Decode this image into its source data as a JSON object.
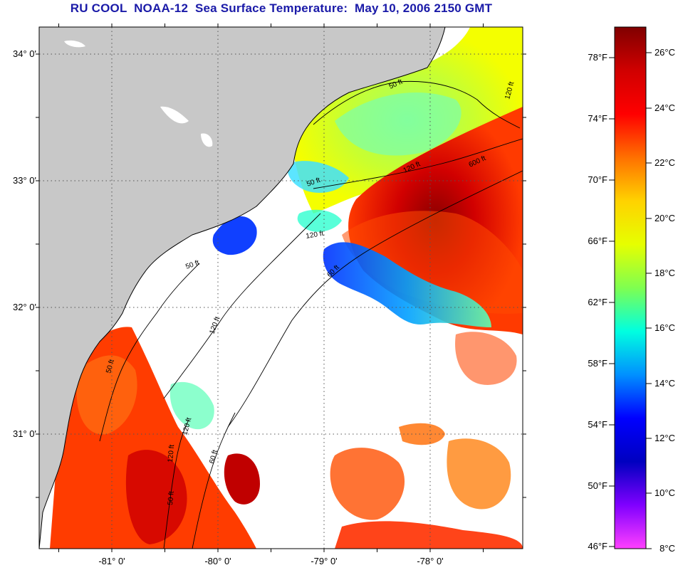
{
  "title": "RU COOL  NOAA-12  Sea Surface Temperature:  May 10, 2006 2150 GMT",
  "map": {
    "lat_labels": [
      {
        "text": "34° 0'",
        "lat": 34.0
      },
      {
        "text": "33° 0'",
        "lat": 33.0
      },
      {
        "text": "32° 0'",
        "lat": 32.0
      },
      {
        "text": "31° 0'",
        "lat": 31.0
      }
    ],
    "lon_labels": [
      {
        "text": "-81° 0'",
        "lon": -81.0
      },
      {
        "text": "-80° 0'",
        "lon": -80.0
      },
      {
        "text": "-79° 0'",
        "lon": -79.0
      },
      {
        "text": "-78° 0'",
        "lon": -78.0
      }
    ],
    "contour_labels": [
      "50 ft",
      "120 ft",
      "50 ft",
      "120 ft",
      "60 ft",
      "50 ft",
      "120 ft",
      "600 ft",
      "50 ft",
      "120 ft",
      "120 ft",
      "60 ft",
      "50 ft",
      "120 ft"
    ],
    "land_color": "#c8c8c8",
    "cloud_color": "#ffffff"
  },
  "colorbar": {
    "fahrenheit_labels": [
      "78°F",
      "74°F",
      "70°F",
      "66°F",
      "62°F",
      "58°F",
      "54°F",
      "50°F",
      "46°F"
    ],
    "celsius_labels": [
      "26°C",
      "24°C",
      "22°C",
      "20°C",
      "18°C",
      "16°C",
      "14°C",
      "12°C",
      "10°C",
      "8°C"
    ],
    "colors_top_to_bottom": [
      "#800000",
      "#d00000",
      "#ff0000",
      "#ff7000",
      "#ffd200",
      "#e6ff00",
      "#7fff50",
      "#00ffe0",
      "#0090ff",
      "#0000ff",
      "#0000c0",
      "#8000ff",
      "#ff40ff"
    ]
  }
}
